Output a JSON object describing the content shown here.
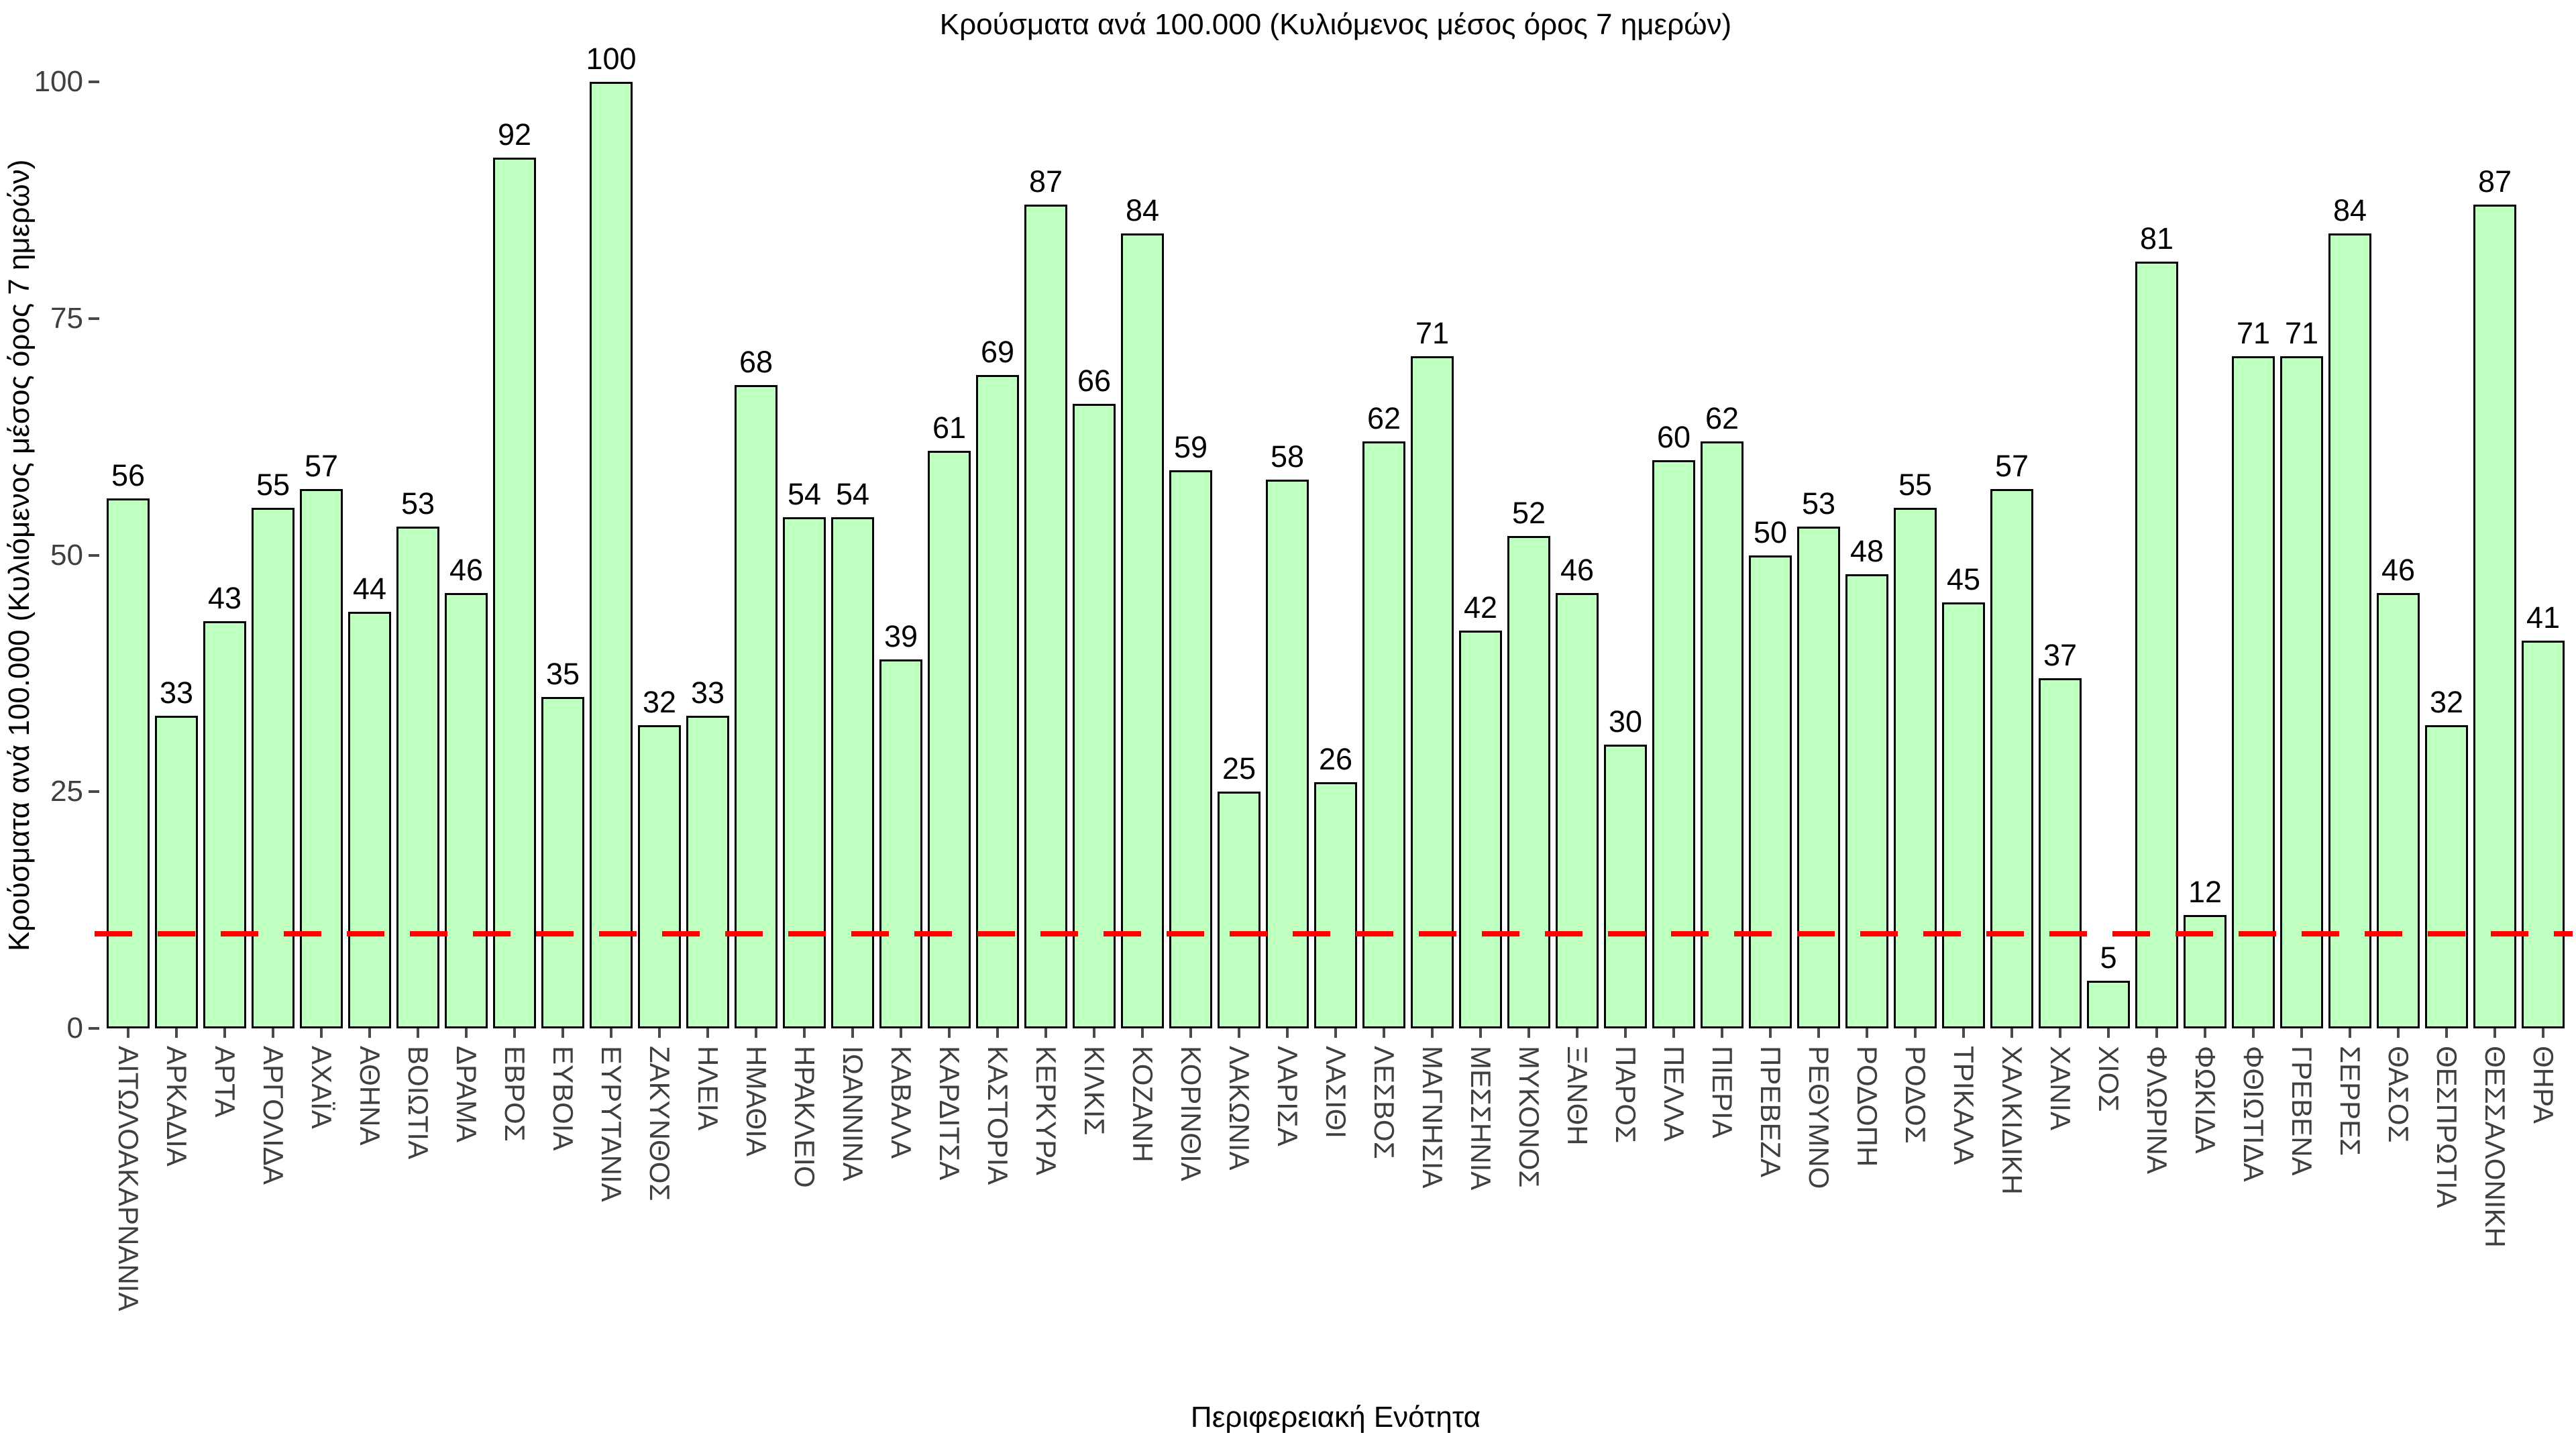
{
  "chart_data": {
    "type": "bar",
    "title": "Κρούσματα ανά 100.000 (Κυλιόμενος μέσος όρος 7 ημερών)",
    "ylabel": "Κρούσματα ανά 100.000 (Κυλιόμενος μέσος όρος 7 ημερών)",
    "xlabel": "Περιφερειακή Ενότητα",
    "ylim": [
      0,
      100
    ],
    "yticks": [
      0,
      25,
      50,
      75,
      100
    ],
    "grid": false,
    "legend": "none",
    "bar_labels_shown": true,
    "threshold_line": {
      "value": 10,
      "color": "#ff0000",
      "style": "dashed"
    },
    "colors": {
      "bar_fill": "#bfffbf",
      "bar_edge": "#000000",
      "tick_text": "#3f3f3f",
      "value_text": "#000000",
      "background": "#ffffff"
    },
    "categories": [
      "ΑΙΤΩΛΟΑΚΑΡΝΑΝΙΑ",
      "ΑΡΚΑΔΙΑ",
      "ΑΡΤΑ",
      "ΑΡΓΟΛΙΔΑ",
      "ΑΧΑΪΑ",
      "ΑΘΗΝΑ",
      "ΒΟΙΩΤΙΑ",
      "ΔΡΑΜΑ",
      "ΕΒΡΟΣ",
      "ΕΥΒΟΙΑ",
      "ΕΥΡΥΤΑΝΙΑ",
      "ΖΑΚΥΝΘΟΣ",
      "ΗΛΕΙΑ",
      "ΗΜΑΘΙΑ",
      "ΗΡΑΚΛΕΙΟ",
      "ΙΩΑΝΝΙΝΑ",
      "ΚΑΒΑΛΑ",
      "ΚΑΡΔΙΤΣΑ",
      "ΚΑΣΤΟΡΙΑ",
      "ΚΕΡΚΥΡΑ",
      "ΚΙΛΚΙΣ",
      "ΚΟΖΑΝΗ",
      "ΚΟΡΙΝΘΙΑ",
      "ΛΑΚΩΝΙΑ",
      "ΛΑΡΙΣΑ",
      "ΛΑΣΙΘΙ",
      "ΛΕΣΒΟΣ",
      "ΜΑΓΝΗΣΙΑ",
      "ΜΕΣΣΗΝΙΑ",
      "ΜΥΚΟΝΟΣ",
      "ΞΑΝΘΗ",
      "ΠΑΡΟΣ",
      "ΠΕΛΛΑ",
      "ΠΙΕΡΙΑ",
      "ΠΡΕΒΕΖΑ",
      "ΡΕΘΥΜΝΟ",
      "ΡΟΔΟΠΗ",
      "ΡΟΔΟΣ",
      "ΤΡΙΚΑΛΑ",
      "ΧΑΛΚΙΔΙΚΗ",
      "ΧΑΝΙΑ",
      "ΧΙΟΣ",
      "ΦΛΩΡΙΝΑ",
      "ΦΩΚΙΔΑ",
      "ΦΘΙΩΤΙΔΑ",
      "ΓΡΕΒΕΝΑ",
      "ΣΕΡΡΕΣ",
      "ΘΑΣΟΣ",
      "ΘΕΣΠΡΩΤΙΑ",
      "ΘΕΣΣΑΛΟΝΙΚΗ",
      "ΘΗΡΑ"
    ],
    "values": [
      56,
      33,
      43,
      55,
      57,
      44,
      53,
      46,
      92,
      35,
      100,
      32,
      33,
      68,
      54,
      54,
      39,
      61,
      69,
      87,
      66,
      84,
      59,
      25,
      58,
      26,
      62,
      71,
      42,
      52,
      46,
      30,
      60,
      62,
      50,
      53,
      48,
      55,
      45,
      57,
      37,
      5,
      81,
      12,
      71,
      71,
      84,
      46,
      32,
      87,
      41
    ]
  }
}
